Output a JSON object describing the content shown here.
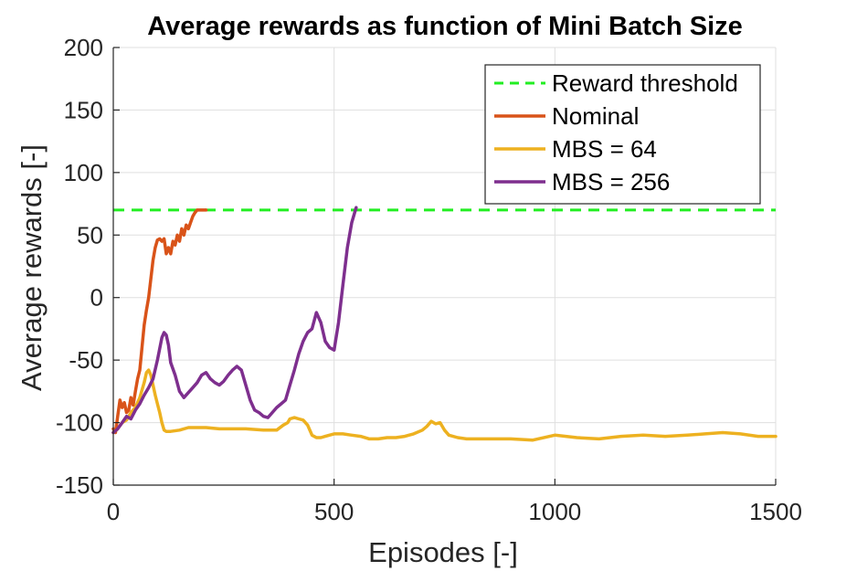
{
  "chart_data": {
    "type": "line",
    "title": "Average rewards as function of Mini Batch Size",
    "xlabel": "Episodes [-]",
    "ylabel": "Average rewards [-]",
    "xlim": [
      0,
      1500
    ],
    "ylim": [
      -150,
      200
    ],
    "xticks": [
      0,
      500,
      1000,
      1500
    ],
    "yticks": [
      -150,
      -100,
      -50,
      0,
      50,
      100,
      150,
      200
    ],
    "grid": true,
    "legend_position": "top-right",
    "series": [
      {
        "name": "Reward threshold",
        "color": "#22ee22",
        "style": "dashed",
        "x": [
          0,
          1500
        ],
        "y": [
          70,
          70
        ]
      },
      {
        "name": "Nominal",
        "color": "#d95319",
        "style": "solid",
        "x": [
          0,
          5,
          10,
          15,
          20,
          25,
          30,
          35,
          40,
          45,
          50,
          55,
          60,
          65,
          70,
          75,
          80,
          85,
          90,
          95,
          100,
          105,
          110,
          115,
          120,
          125,
          130,
          135,
          140,
          145,
          150,
          155,
          160,
          165,
          170,
          175,
          180,
          185,
          190,
          195,
          200,
          205,
          210
        ],
        "y": [
          -105,
          -108,
          -95,
          -82,
          -88,
          -84,
          -92,
          -90,
          -80,
          -86,
          -75,
          -65,
          -58,
          -40,
          -22,
          -10,
          0,
          15,
          30,
          40,
          46,
          47,
          45,
          47,
          35,
          40,
          35,
          45,
          42,
          50,
          45,
          55,
          50,
          58,
          55,
          60,
          65,
          68,
          70,
          70,
          70,
          70,
          70
        ]
      },
      {
        "name": "MBS = 64",
        "color": "#edb120",
        "style": "solid",
        "x": [
          0,
          10,
          20,
          30,
          40,
          50,
          60,
          70,
          75,
          80,
          85,
          90,
          95,
          100,
          105,
          110,
          115,
          120,
          130,
          150,
          170,
          190,
          210,
          240,
          270,
          300,
          340,
          370,
          385,
          395,
          400,
          410,
          420,
          430,
          440,
          450,
          460,
          470,
          480,
          500,
          520,
          540,
          560,
          580,
          600,
          620,
          640,
          660,
          680,
          700,
          710,
          720,
          730,
          740,
          750,
          760,
          780,
          800,
          850,
          900,
          950,
          1000,
          1050,
          1100,
          1150,
          1200,
          1250,
          1300,
          1340,
          1380,
          1420,
          1460,
          1500
        ],
        "y": [
          -108,
          -105,
          -100,
          -98,
          -92,
          -88,
          -80,
          -68,
          -60,
          -58,
          -62,
          -70,
          -78,
          -85,
          -92,
          -100,
          -106,
          -107,
          -107,
          -106,
          -104,
          -104,
          -104,
          -105,
          -105,
          -105,
          -106,
          -106,
          -102,
          -100,
          -97,
          -96,
          -97,
          -98,
          -102,
          -110,
          -112,
          -112,
          -111,
          -109,
          -109,
          -110,
          -111,
          -113,
          -113,
          -112,
          -112,
          -111,
          -109,
          -106,
          -103,
          -99,
          -101,
          -100,
          -106,
          -110,
          -112,
          -113,
          -113,
          -113,
          -114,
          -110,
          -112,
          -113,
          -111,
          -110,
          -111,
          -110,
          -109,
          -108,
          -109,
          -111,
          -111
        ]
      },
      {
        "name": "MBS = 256",
        "color": "#7e2f8e",
        "style": "solid",
        "x": [
          0,
          10,
          20,
          30,
          40,
          50,
          60,
          70,
          80,
          90,
          100,
          110,
          115,
          120,
          125,
          130,
          140,
          150,
          160,
          170,
          180,
          190,
          200,
          210,
          220,
          230,
          240,
          250,
          260,
          270,
          280,
          290,
          300,
          310,
          320,
          330,
          340,
          350,
          360,
          370,
          380,
          390,
          400,
          410,
          420,
          430,
          440,
          450,
          460,
          470,
          480,
          490,
          500,
          510,
          520,
          530,
          540,
          550
        ],
        "y": [
          -108,
          -105,
          -100,
          -95,
          -97,
          -90,
          -85,
          -78,
          -72,
          -65,
          -50,
          -32,
          -28,
          -30,
          -38,
          -52,
          -62,
          -75,
          -80,
          -76,
          -72,
          -68,
          -62,
          -60,
          -65,
          -68,
          -70,
          -67,
          -62,
          -58,
          -55,
          -58,
          -70,
          -82,
          -90,
          -92,
          -95,
          -96,
          -92,
          -88,
          -85,
          -82,
          -70,
          -58,
          -45,
          -35,
          -28,
          -25,
          -12,
          -20,
          -35,
          -40,
          -42,
          -20,
          10,
          40,
          60,
          72
        ]
      }
    ]
  }
}
